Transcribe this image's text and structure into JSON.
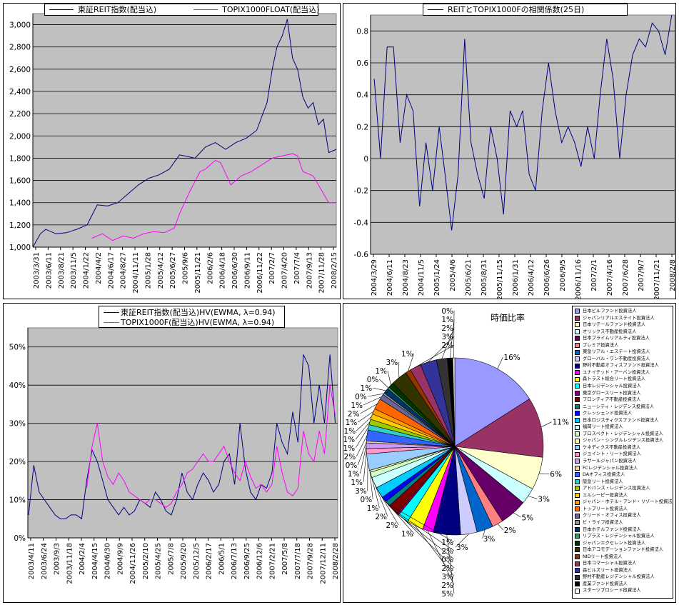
{
  "chart_data": [
    {
      "type": "line",
      "title": "",
      "legend": [
        "東証REIT指数(配当込)",
        "TOPIX1000FLOAT(配当込)"
      ],
      "legend_placement": "top",
      "ylim": [
        1000,
        3100
      ],
      "yticks": [
        1000,
        1200,
        1400,
        1600,
        1800,
        2000,
        2200,
        2400,
        2600,
        2800,
        3000
      ],
      "ytick_labels": [
        "1,000",
        "1,200",
        "1,400",
        "1,600",
        "1,800",
        "2,000",
        "2,200",
        "2,400",
        "2,600",
        "2,800",
        "3,000"
      ],
      "xrange": [
        "2003-03-31",
        "2008-02-29"
      ],
      "xtick_labels": [
        "2003/3/31",
        "2003/6/11",
        "2003/8/21",
        "2003/11/5",
        "2004/1/22",
        "2004/4/2",
        "2004/6/17",
        "2004/8/27",
        "2004/11/11",
        "2005/1/28",
        "2005/4/12",
        "2005/6/27",
        "2005/9/6",
        "2005/11/21",
        "2006/2/6",
        "2006/4/18",
        "2006/6/30",
        "2006/9/11",
        "2006/11/22",
        "2007/2/7",
        "2007/4/20",
        "2007/7/4",
        "2007/9/13",
        "2007/11/28",
        "2008/2/15"
      ],
      "grid": true,
      "background": "#c0c0c0",
      "series": [
        {
          "name": "東証REIT指数(配当込)",
          "color": "#000080",
          "points": [
            [
              "2003-03-31",
              1000
            ],
            [
              "2003-05-15",
              1120
            ],
            [
              "2003-06-15",
              1160
            ],
            [
              "2003-08-15",
              1120
            ],
            [
              "2003-10-15",
              1130
            ],
            [
              "2003-12-15",
              1160
            ],
            [
              "2004-02-15",
              1200
            ],
            [
              "2004-04-15",
              1380
            ],
            [
              "2004-06-15",
              1370
            ],
            [
              "2004-08-15",
              1400
            ],
            [
              "2004-10-15",
              1480
            ],
            [
              "2004-12-15",
              1560
            ],
            [
              "2005-02-15",
              1620
            ],
            [
              "2005-04-15",
              1650
            ],
            [
              "2005-06-15",
              1700
            ],
            [
              "2005-08-15",
              1830
            ],
            [
              "2005-09-15",
              1820
            ],
            [
              "2005-11-15",
              1800
            ],
            [
              "2006-01-15",
              1900
            ],
            [
              "2006-03-15",
              1940
            ],
            [
              "2006-05-15",
              1880
            ],
            [
              "2006-07-15",
              1940
            ],
            [
              "2006-09-15",
              1980
            ],
            [
              "2006-11-15",
              2050
            ],
            [
              "2007-01-15",
              2300
            ],
            [
              "2007-02-15",
              2600
            ],
            [
              "2007-03-15",
              2800
            ],
            [
              "2007-04-15",
              2900
            ],
            [
              "2007-05-15",
              3050
            ],
            [
              "2007-06-15",
              2700
            ],
            [
              "2007-07-15",
              2600
            ],
            [
              "2007-08-15",
              2350
            ],
            [
              "2007-09-15",
              2250
            ],
            [
              "2007-10-15",
              2300
            ],
            [
              "2007-11-15",
              2100
            ],
            [
              "2007-12-15",
              2150
            ],
            [
              "2008-01-15",
              1850
            ],
            [
              "2008-02-29",
              1880
            ]
          ]
        },
        {
          "name": "TOPIX1000FLOAT(配当込)",
          "color": "#ff00ff",
          "points": [
            [
              "2004-03-15",
              1080
            ],
            [
              "2004-05-15",
              1120
            ],
            [
              "2004-07-15",
              1060
            ],
            [
              "2004-09-15",
              1100
            ],
            [
              "2004-11-15",
              1080
            ],
            [
              "2005-01-15",
              1120
            ],
            [
              "2005-03-15",
              1140
            ],
            [
              "2005-05-15",
              1130
            ],
            [
              "2005-07-15",
              1170
            ],
            [
              "2005-08-15",
              1300
            ],
            [
              "2005-10-15",
              1500
            ],
            [
              "2005-12-15",
              1680
            ],
            [
              "2006-01-15",
              1700
            ],
            [
              "2006-03-15",
              1780
            ],
            [
              "2006-04-15",
              1760
            ],
            [
              "2006-06-15",
              1560
            ],
            [
              "2006-08-15",
              1640
            ],
            [
              "2006-10-15",
              1680
            ],
            [
              "2006-12-15",
              1740
            ],
            [
              "2007-02-15",
              1800
            ],
            [
              "2007-04-15",
              1820
            ],
            [
              "2007-06-15",
              1840
            ],
            [
              "2007-07-15",
              1820
            ],
            [
              "2007-08-15",
              1680
            ],
            [
              "2007-10-15",
              1640
            ],
            [
              "2007-11-15",
              1560
            ],
            [
              "2008-01-15",
              1400
            ],
            [
              "2008-02-29",
              1400
            ]
          ]
        }
      ]
    },
    {
      "type": "line",
      "title": "REITとTOPIX1000Fの相関係数(25日)",
      "legend": [
        "REITとTOPIX1000Fの相関係数(25日)"
      ],
      "legend_placement": "top",
      "ylim": [
        -0.6,
        0.9
      ],
      "yticks": [
        -0.6,
        -0.4,
        -0.2,
        0,
        0.2,
        0.4,
        0.6,
        0.8
      ],
      "ytick_labels": [
        "-0.6",
        "-0.4",
        "-0.2",
        "0",
        "0.2",
        "0.4",
        "0.6",
        "0.8"
      ],
      "xrange": [
        "2004-03-29",
        "2008-02-29"
      ],
      "xtick_labels": [
        "2004/3/29",
        "2004/6/11",
        "2004/8/23",
        "2004/11/5",
        "2005/1/24",
        "2005/4/6",
        "2005/6/21",
        "2005/8/31",
        "2005/11/15",
        "2006/1/31",
        "2006/4/12",
        "2006/6/26",
        "2006/9/5",
        "2006/11/16",
        "2007/2/1",
        "2007/4/16",
        "2007/6/28",
        "2007/9/7",
        "2007/11/21",
        "2008/2/8"
      ],
      "grid": true,
      "background": "#c0c0c0",
      "series": [
        {
          "name": "REITとTOPIX1000Fの相関係数(25日)",
          "color": "#000080",
          "start_month": "2004-04",
          "monthly": [
            0.5,
            0.0,
            0.7,
            0.7,
            0.1,
            0.4,
            0.3,
            -0.3,
            0.1,
            -0.2,
            0.2,
            -0.1,
            -0.45,
            -0.1,
            0.75,
            0.1,
            -0.1,
            -0.25,
            0.2,
            0.0,
            -0.35,
            0.3,
            0.2,
            0.3,
            -0.1,
            -0.2,
            0.3,
            0.6,
            0.3,
            0.1,
            0.2,
            0.1,
            -0.05,
            0.2,
            0.0,
            0.4,
            0.75,
            0.5,
            0.0,
            0.4,
            0.65,
            0.75,
            0.7,
            0.85,
            0.8,
            0.65,
            0.9
          ]
        }
      ]
    },
    {
      "type": "line",
      "title": "",
      "legend": [
        "東証REIT指数(配当込)HV(EWMA, λ=0.94)",
        "TOPIX1000F(配当込)HV(EWMA, λ=0.94)"
      ],
      "legend_placement": "top",
      "ylim": [
        0,
        0.55
      ],
      "yticks": [
        0,
        0.1,
        0.2,
        0.3,
        0.4,
        0.5
      ],
      "ytick_labels": [
        "0%",
        "10%",
        "20%",
        "30%",
        "40%",
        "50%"
      ],
      "xrange": [
        "2003-04-11",
        "2008-02-29"
      ],
      "xtick_labels": [
        "2003/4/11",
        "2003/6/24",
        "2003/9/3",
        "2003/11/18",
        "2004/2/4",
        "2004/4/15",
        "2004/6/30",
        "2004/9/9",
        "2004/11/26",
        "2005/2/10",
        "2005/4/25",
        "2005/7/8",
        "2005/9/20",
        "2005/12/5",
        "2006/2/17",
        "2006/5/1",
        "2006/7/13",
        "2006/9/25",
        "2006/12/6",
        "2007/2/21",
        "2007/5/8",
        "2007/7/18",
        "2007/9/28",
        "2007/12/11",
        "2008/2/28"
      ],
      "grid": true,
      "background": "#c0c0c0",
      "series": [
        {
          "name": "東証REIT指数(配当込)HV(EWMA, λ=0.94)",
          "color": "#000080",
          "start_month": "2003-04",
          "monthly": [
            0.06,
            0.19,
            0.12,
            0.1,
            0.08,
            0.06,
            0.05,
            0.05,
            0.06,
            0.06,
            0.05,
            0.15,
            0.23,
            0.2,
            0.15,
            0.1,
            0.08,
            0.06,
            0.08,
            0.06,
            0.07,
            0.1,
            0.09,
            0.08,
            0.12,
            0.1,
            0.07,
            0.06,
            0.1,
            0.17,
            0.12,
            0.1,
            0.14,
            0.17,
            0.15,
            0.12,
            0.14,
            0.2,
            0.22,
            0.14,
            0.3,
            0.18,
            0.12,
            0.1,
            0.14,
            0.13,
            0.17,
            0.3,
            0.25,
            0.22,
            0.33,
            0.25,
            0.48,
            0.45,
            0.3,
            0.4,
            0.3,
            0.48,
            0.3
          ]
        },
        {
          "name": "TOPIX1000F(配当込)HV(EWMA, λ=0.94)",
          "color": "#ff00ff",
          "start_month": "2004-03",
          "monthly": [
            0.13,
            0.24,
            0.3,
            0.2,
            0.16,
            0.14,
            0.17,
            0.15,
            0.12,
            0.11,
            0.1,
            0.09,
            0.1,
            0.1,
            0.09,
            0.08,
            0.09,
            0.12,
            0.14,
            0.17,
            0.18,
            0.2,
            0.22,
            0.2,
            0.2,
            0.22,
            0.24,
            0.2,
            0.17,
            0.15,
            0.2,
            0.16,
            0.13,
            0.14,
            0.12,
            0.14,
            0.24,
            0.17,
            0.12,
            0.11,
            0.13,
            0.28,
            0.22,
            0.2,
            0.28,
            0.22,
            0.4,
            0.32
          ]
        }
      ]
    },
    {
      "type": "pie",
      "title": "時価比率",
      "legend_placement": "right",
      "labels": [
        "日本ビルファンド投資法人",
        "ジャパンリアルエステイト投資法人",
        "日本リテールファンド投資法人",
        "オリックス不動産投資法人",
        "日本プライムリアルティ投資法人",
        "プレミア投資法人",
        "東急リアル・エステート投資法人",
        "グローバル・ワン不動産投資法人",
        "野村不動産オフィスファンド投資法人",
        "ユナイテッド・アーバン投資法人",
        "森トラスト総合リート投資法人",
        "日本レジデンシャル投資法人",
        "東京グロースリート投資法人",
        "フロンティア不動産投資法人",
        "ニューシティ・レジデンス投資法人",
        "クレッシェンド投資法人",
        "日本ロジスティクスファンド投資法人",
        "福岡リート投資法人",
        "プロスペクト・レジデンシャル投資法人",
        "ジャパン・シングルレジデンス投資法人",
        "ケネディクス不動産投資法人",
        "ジョイント・リート投資法人",
        "ラサールジャパン投資法人",
        "FCレジデンシャル投資法人",
        "DAオフィス投資法人",
        "阪急リート投資法人",
        "アドバンス・レジデンス投資法人",
        "エルシーピー投資法人",
        "ジャパン・ホテル・アンド・リゾート投資法人",
        "トップリート投資法人",
        "クリード・オフィス投資法人",
        "ビ・ライフ投資法人",
        "日本ホテルファンド投資法人",
        "リプラス・レジデンシャル投資法人",
        "ジャパンエクセレント投資法人",
        "日本アコモデーションファンド投資法人",
        "NIDリート投資法人",
        "日本コマーシャル投資法人",
        "森ヒルズリート投資法人",
        "野村不動産レジデンシャル投資法人",
        "産業ファンド投資法人",
        "スターツプロシード投資法人"
      ],
      "values": [
        16,
        11,
        6,
        3,
        5,
        2,
        3,
        3,
        5,
        2,
        3,
        2,
        0,
        2,
        1,
        1,
        2,
        2,
        1,
        0,
        3,
        1,
        1,
        0,
        2,
        1,
        1,
        1,
        1,
        2,
        1,
        0,
        1,
        0,
        1,
        3,
        1,
        2,
        3,
        2,
        1,
        0
      ],
      "value_labels_unit": "%",
      "colors": [
        "#9999ff",
        "#993366",
        "#ffffcc",
        "#ccffff",
        "#660066",
        "#ff8080",
        "#0066cc",
        "#ccccff",
        "#000080",
        "#ff00ff",
        "#ffff00",
        "#00ffff",
        "#800080",
        "#800000",
        "#008080",
        "#0000ff",
        "#00ccff",
        "#ccffff",
        "#ccffcc",
        "#ffff99",
        "#99ccff",
        "#ff99cc",
        "#cc99ff",
        "#ffcc99",
        "#3366ff",
        "#33cccc",
        "#99cc00",
        "#ffcc00",
        "#ff9900",
        "#ff6600",
        "#666699",
        "#969696",
        "#003366",
        "#339966",
        "#003300",
        "#333300",
        "#993300",
        "#993366",
        "#333399",
        "#333333",
        "#000000",
        "#ffffff"
      ]
    }
  ]
}
